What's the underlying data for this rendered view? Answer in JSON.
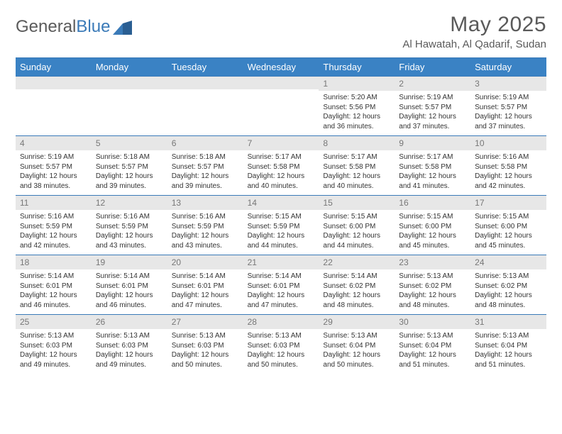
{
  "brand": {
    "part1": "General",
    "part2": "Blue"
  },
  "title": "May 2025",
  "location": "Al Hawatah, Al Qadarif, Sudan",
  "colors": {
    "header_bg": "#3a82c4",
    "header_text": "#ffffff",
    "border": "#3a7ab8",
    "daynum_bg": "#e7e7e7",
    "daynum_text": "#777777",
    "body_text": "#333333",
    "brand_gray": "#5a5a5a",
    "brand_blue": "#3a7ab8",
    "page_bg": "#ffffff"
  },
  "typography": {
    "title_fontsize": 30,
    "location_fontsize": 15,
    "header_fontsize": 13,
    "daynum_fontsize": 12,
    "body_fontsize": 10
  },
  "day_names": [
    "Sunday",
    "Monday",
    "Tuesday",
    "Wednesday",
    "Thursday",
    "Friday",
    "Saturday"
  ],
  "weeks": [
    [
      {
        "num": "",
        "sunrise": "",
        "sunset": "",
        "daylight": ""
      },
      {
        "num": "",
        "sunrise": "",
        "sunset": "",
        "daylight": ""
      },
      {
        "num": "",
        "sunrise": "",
        "sunset": "",
        "daylight": ""
      },
      {
        "num": "",
        "sunrise": "",
        "sunset": "",
        "daylight": ""
      },
      {
        "num": "1",
        "sunrise": "Sunrise: 5:20 AM",
        "sunset": "Sunset: 5:56 PM",
        "daylight": "Daylight: 12 hours and 36 minutes."
      },
      {
        "num": "2",
        "sunrise": "Sunrise: 5:19 AM",
        "sunset": "Sunset: 5:57 PM",
        "daylight": "Daylight: 12 hours and 37 minutes."
      },
      {
        "num": "3",
        "sunrise": "Sunrise: 5:19 AM",
        "sunset": "Sunset: 5:57 PM",
        "daylight": "Daylight: 12 hours and 37 minutes."
      }
    ],
    [
      {
        "num": "4",
        "sunrise": "Sunrise: 5:19 AM",
        "sunset": "Sunset: 5:57 PM",
        "daylight": "Daylight: 12 hours and 38 minutes."
      },
      {
        "num": "5",
        "sunrise": "Sunrise: 5:18 AM",
        "sunset": "Sunset: 5:57 PM",
        "daylight": "Daylight: 12 hours and 39 minutes."
      },
      {
        "num": "6",
        "sunrise": "Sunrise: 5:18 AM",
        "sunset": "Sunset: 5:57 PM",
        "daylight": "Daylight: 12 hours and 39 minutes."
      },
      {
        "num": "7",
        "sunrise": "Sunrise: 5:17 AM",
        "sunset": "Sunset: 5:58 PM",
        "daylight": "Daylight: 12 hours and 40 minutes."
      },
      {
        "num": "8",
        "sunrise": "Sunrise: 5:17 AM",
        "sunset": "Sunset: 5:58 PM",
        "daylight": "Daylight: 12 hours and 40 minutes."
      },
      {
        "num": "9",
        "sunrise": "Sunrise: 5:17 AM",
        "sunset": "Sunset: 5:58 PM",
        "daylight": "Daylight: 12 hours and 41 minutes."
      },
      {
        "num": "10",
        "sunrise": "Sunrise: 5:16 AM",
        "sunset": "Sunset: 5:58 PM",
        "daylight": "Daylight: 12 hours and 42 minutes."
      }
    ],
    [
      {
        "num": "11",
        "sunrise": "Sunrise: 5:16 AM",
        "sunset": "Sunset: 5:59 PM",
        "daylight": "Daylight: 12 hours and 42 minutes."
      },
      {
        "num": "12",
        "sunrise": "Sunrise: 5:16 AM",
        "sunset": "Sunset: 5:59 PM",
        "daylight": "Daylight: 12 hours and 43 minutes."
      },
      {
        "num": "13",
        "sunrise": "Sunrise: 5:16 AM",
        "sunset": "Sunset: 5:59 PM",
        "daylight": "Daylight: 12 hours and 43 minutes."
      },
      {
        "num": "14",
        "sunrise": "Sunrise: 5:15 AM",
        "sunset": "Sunset: 5:59 PM",
        "daylight": "Daylight: 12 hours and 44 minutes."
      },
      {
        "num": "15",
        "sunrise": "Sunrise: 5:15 AM",
        "sunset": "Sunset: 6:00 PM",
        "daylight": "Daylight: 12 hours and 44 minutes."
      },
      {
        "num": "16",
        "sunrise": "Sunrise: 5:15 AM",
        "sunset": "Sunset: 6:00 PM",
        "daylight": "Daylight: 12 hours and 45 minutes."
      },
      {
        "num": "17",
        "sunrise": "Sunrise: 5:15 AM",
        "sunset": "Sunset: 6:00 PM",
        "daylight": "Daylight: 12 hours and 45 minutes."
      }
    ],
    [
      {
        "num": "18",
        "sunrise": "Sunrise: 5:14 AM",
        "sunset": "Sunset: 6:01 PM",
        "daylight": "Daylight: 12 hours and 46 minutes."
      },
      {
        "num": "19",
        "sunrise": "Sunrise: 5:14 AM",
        "sunset": "Sunset: 6:01 PM",
        "daylight": "Daylight: 12 hours and 46 minutes."
      },
      {
        "num": "20",
        "sunrise": "Sunrise: 5:14 AM",
        "sunset": "Sunset: 6:01 PM",
        "daylight": "Daylight: 12 hours and 47 minutes."
      },
      {
        "num": "21",
        "sunrise": "Sunrise: 5:14 AM",
        "sunset": "Sunset: 6:01 PM",
        "daylight": "Daylight: 12 hours and 47 minutes."
      },
      {
        "num": "22",
        "sunrise": "Sunrise: 5:14 AM",
        "sunset": "Sunset: 6:02 PM",
        "daylight": "Daylight: 12 hours and 48 minutes."
      },
      {
        "num": "23",
        "sunrise": "Sunrise: 5:13 AM",
        "sunset": "Sunset: 6:02 PM",
        "daylight": "Daylight: 12 hours and 48 minutes."
      },
      {
        "num": "24",
        "sunrise": "Sunrise: 5:13 AM",
        "sunset": "Sunset: 6:02 PM",
        "daylight": "Daylight: 12 hours and 48 minutes."
      }
    ],
    [
      {
        "num": "25",
        "sunrise": "Sunrise: 5:13 AM",
        "sunset": "Sunset: 6:03 PM",
        "daylight": "Daylight: 12 hours and 49 minutes."
      },
      {
        "num": "26",
        "sunrise": "Sunrise: 5:13 AM",
        "sunset": "Sunset: 6:03 PM",
        "daylight": "Daylight: 12 hours and 49 minutes."
      },
      {
        "num": "27",
        "sunrise": "Sunrise: 5:13 AM",
        "sunset": "Sunset: 6:03 PM",
        "daylight": "Daylight: 12 hours and 50 minutes."
      },
      {
        "num": "28",
        "sunrise": "Sunrise: 5:13 AM",
        "sunset": "Sunset: 6:03 PM",
        "daylight": "Daylight: 12 hours and 50 minutes."
      },
      {
        "num": "29",
        "sunrise": "Sunrise: 5:13 AM",
        "sunset": "Sunset: 6:04 PM",
        "daylight": "Daylight: 12 hours and 50 minutes."
      },
      {
        "num": "30",
        "sunrise": "Sunrise: 5:13 AM",
        "sunset": "Sunset: 6:04 PM",
        "daylight": "Daylight: 12 hours and 51 minutes."
      },
      {
        "num": "31",
        "sunrise": "Sunrise: 5:13 AM",
        "sunset": "Sunset: 6:04 PM",
        "daylight": "Daylight: 12 hours and 51 minutes."
      }
    ]
  ]
}
